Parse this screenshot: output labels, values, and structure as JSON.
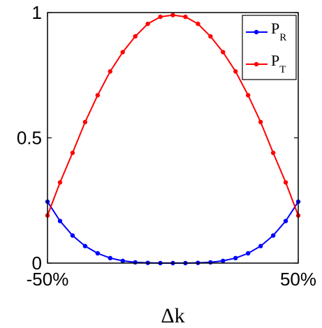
{
  "chart_data": {
    "type": "line",
    "title": "",
    "xlabel": "Δk",
    "ylabel": "",
    "xlim": [
      -50,
      50
    ],
    "ylim": [
      0,
      1
    ],
    "x_ticks": [
      -50,
      50
    ],
    "x_tick_labels": [
      "-50%",
      "50%"
    ],
    "y_ticks": [
      0,
      0.5,
      1
    ],
    "y_tick_labels": [
      "0",
      "0.5",
      "1"
    ],
    "grid": false,
    "legend_position": "top-right",
    "x": [
      -50,
      -45,
      -40,
      -35,
      -30,
      -25,
      -20,
      -15,
      -10,
      -5,
      0,
      5,
      10,
      15,
      20,
      25,
      30,
      35,
      40,
      45,
      50
    ],
    "series": [
      {
        "name_main": "P",
        "name_sub": "R",
        "color": "#0000ff",
        "values": [
          0.245,
          0.168,
          0.11,
          0.068,
          0.039,
          0.02,
          0.009,
          0.003,
          0.001,
          0.0,
          0.0,
          0.0,
          0.001,
          0.003,
          0.009,
          0.02,
          0.039,
          0.068,
          0.11,
          0.168,
          0.245
        ]
      },
      {
        "name_main": "P",
        "name_sub": "T",
        "color": "#ff0000",
        "values": [
          0.19,
          0.322,
          0.44,
          0.563,
          0.67,
          0.765,
          0.842,
          0.905,
          0.955,
          0.983,
          0.99,
          0.983,
          0.955,
          0.905,
          0.842,
          0.765,
          0.67,
          0.563,
          0.44,
          0.322,
          0.19
        ]
      }
    ]
  }
}
